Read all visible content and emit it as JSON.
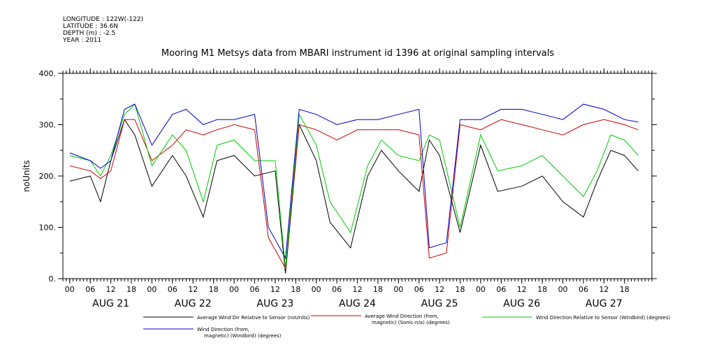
{
  "meta": {
    "longitude": "LONGITUDE : 122W(-122)",
    "latitude": "LATITUDE : 36.6N",
    "depth": "DEPTH (m) : -2.5",
    "year": "YEAR : 2011"
  },
  "chart_data": {
    "type": "line",
    "title": "Mooring M1 Metsys data from MBARI instrument id 1396 at original sampling intervals",
    "ylabel": "noUnits",
    "xlabel": "",
    "ylim": [
      0,
      400
    ],
    "yticks": [
      "0.",
      "100.",
      "200.",
      "300.",
      "400."
    ],
    "x_range_hours": [
      "2011-08-20T22:00",
      "2011-08-28T02:00"
    ],
    "hour_ticks": [
      "00",
      "06",
      "12",
      "18",
      "00",
      "06",
      "12",
      "18",
      "00",
      "06",
      "12",
      "18",
      "00",
      "06",
      "12",
      "18",
      "00",
      "06",
      "12",
      "18",
      "00",
      "06",
      "12",
      "18",
      "00",
      "06",
      "12",
      "18"
    ],
    "day_labels": [
      "AUG 21",
      "AUG 22",
      "AUG 23",
      "AUG 24",
      "AUG 25",
      "AUG 26",
      "AUG 27"
    ],
    "grid": false,
    "legend_position": "bottom",
    "series": [
      {
        "name_lines": [
          "Average Wind Dir Relative to Sensor (noUnits)"
        ],
        "color": "#000000",
        "x": [
          "2011-08-21T00:00",
          "2011-08-21T06:00",
          "2011-08-21T09:00",
          "2011-08-21T12:00",
          "2011-08-21T16:00",
          "2011-08-21T19:00",
          "2011-08-22T00:00",
          "2011-08-22T06:00",
          "2011-08-22T10:00",
          "2011-08-22T15:00",
          "2011-08-22T19:00",
          "2011-08-23T00:00",
          "2011-08-23T06:00",
          "2011-08-23T12:00",
          "2011-08-23T15:00",
          "2011-08-23T19:00",
          "2011-08-24T00:00",
          "2011-08-24T04:00",
          "2011-08-24T10:00",
          "2011-08-24T15:00",
          "2011-08-24T19:00",
          "2011-08-25T00:00",
          "2011-08-25T06:00",
          "2011-08-25T09:00",
          "2011-08-25T12:00",
          "2011-08-25T18:00",
          "2011-08-26T00:00",
          "2011-08-26T05:00",
          "2011-08-26T12:00",
          "2011-08-26T18:00",
          "2011-08-27T00:00",
          "2011-08-27T06:00",
          "2011-08-27T10:00",
          "2011-08-27T14:00",
          "2011-08-27T18:00",
          "2011-08-27T22:00"
        ],
        "values": [
          190,
          200,
          150,
          230,
          310,
          280,
          180,
          240,
          200,
          120,
          230,
          240,
          200,
          210,
          10,
          300,
          230,
          110,
          60,
          200,
          250,
          210,
          170,
          270,
          240,
          90,
          260,
          170,
          180,
          200,
          150,
          120,
          190,
          250,
          240,
          210
        ]
      },
      {
        "name_lines": [
          "Average Wind Direction (from,",
          "magnetic) (Sonic-n/a) (degrees)"
        ],
        "color": "#cc0000",
        "x": [
          "2011-08-21T00:00",
          "2011-08-21T06:00",
          "2011-08-21T09:00",
          "2011-08-21T12:00",
          "2011-08-21T16:00",
          "2011-08-21T19:00",
          "2011-08-22T00:00",
          "2011-08-22T06:00",
          "2011-08-22T10:00",
          "2011-08-22T15:00",
          "2011-08-22T19:00",
          "2011-08-23T00:00",
          "2011-08-23T06:00",
          "2011-08-23T10:00",
          "2011-08-23T15:00",
          "2011-08-23T19:00",
          "2011-08-24T00:00",
          "2011-08-24T06:00",
          "2011-08-24T12:00",
          "2011-08-24T18:00",
          "2011-08-25T00:00",
          "2011-08-25T06:00",
          "2011-08-25T09:00",
          "2011-08-25T14:00",
          "2011-08-25T18:00",
          "2011-08-26T00:00",
          "2011-08-26T06:00",
          "2011-08-26T12:00",
          "2011-08-26T18:00",
          "2011-08-27T00:00",
          "2011-08-27T06:00",
          "2011-08-27T12:00",
          "2011-08-27T18:00",
          "2011-08-27T22:00"
        ],
        "values": [
          220,
          210,
          195,
          210,
          310,
          310,
          230,
          260,
          290,
          280,
          290,
          300,
          290,
          80,
          20,
          300,
          290,
          270,
          290,
          290,
          290,
          280,
          40,
          50,
          300,
          290,
          310,
          300,
          290,
          280,
          300,
          310,
          300,
          290
        ]
      },
      {
        "name_lines": [
          "Wind Direction Relative to Sensor (Windbird) (degrees)"
        ],
        "color": "#00cc00",
        "x": [
          "2011-08-21T00:00",
          "2011-08-21T06:00",
          "2011-08-21T09:00",
          "2011-08-21T12:00",
          "2011-08-21T16:00",
          "2011-08-21T19:00",
          "2011-08-22T00:00",
          "2011-08-22T06:00",
          "2011-08-22T10:00",
          "2011-08-22T15:00",
          "2011-08-22T19:00",
          "2011-08-23T00:00",
          "2011-08-23T06:00",
          "2011-08-23T12:00",
          "2011-08-23T15:00",
          "2011-08-23T19:00",
          "2011-08-24T00:00",
          "2011-08-24T04:00",
          "2011-08-24T10:00",
          "2011-08-24T15:00",
          "2011-08-24T19:00",
          "2011-08-25T00:00",
          "2011-08-25T06:00",
          "2011-08-25T09:00",
          "2011-08-25T12:00",
          "2011-08-25T18:00",
          "2011-08-26T00:00",
          "2011-08-26T05:00",
          "2011-08-26T12:00",
          "2011-08-26T18:00",
          "2011-08-27T00:00",
          "2011-08-27T06:00",
          "2011-08-27T10:00",
          "2011-08-27T14:00",
          "2011-08-27T18:00",
          "2011-08-27T22:00"
        ],
        "values": [
          240,
          230,
          200,
          240,
          320,
          340,
          220,
          280,
          250,
          150,
          260,
          270,
          230,
          230,
          20,
          320,
          260,
          150,
          90,
          220,
          270,
          240,
          230,
          280,
          270,
          100,
          280,
          210,
          220,
          240,
          200,
          160,
          210,
          280,
          270,
          240
        ]
      },
      {
        "name_lines": [
          "Wind Direction (from,",
          "magnetic) (Windbird) (degrees)"
        ],
        "color": "#0000cc",
        "x": [
          "2011-08-21T00:00",
          "2011-08-21T06:00",
          "2011-08-21T09:00",
          "2011-08-21T12:00",
          "2011-08-21T16:00",
          "2011-08-21T19:00",
          "2011-08-22T00:00",
          "2011-08-22T06:00",
          "2011-08-22T10:00",
          "2011-08-22T15:00",
          "2011-08-22T19:00",
          "2011-08-23T00:00",
          "2011-08-23T06:00",
          "2011-08-23T10:00",
          "2011-08-23T15:00",
          "2011-08-23T19:00",
          "2011-08-24T00:00",
          "2011-08-24T06:00",
          "2011-08-24T12:00",
          "2011-08-24T18:00",
          "2011-08-25T00:00",
          "2011-08-25T06:00",
          "2011-08-25T09:00",
          "2011-08-25T14:00",
          "2011-08-25T18:00",
          "2011-08-26T00:00",
          "2011-08-26T06:00",
          "2011-08-26T12:00",
          "2011-08-26T18:00",
          "2011-08-27T00:00",
          "2011-08-27T06:00",
          "2011-08-27T12:00",
          "2011-08-27T18:00",
          "2011-08-27T22:00"
        ],
        "values": [
          245,
          230,
          215,
          230,
          330,
          340,
          260,
          320,
          330,
          300,
          310,
          310,
          320,
          100,
          40,
          330,
          320,
          300,
          310,
          310,
          320,
          330,
          60,
          70,
          310,
          310,
          330,
          330,
          320,
          310,
          340,
          330,
          310,
          305
        ]
      }
    ]
  }
}
